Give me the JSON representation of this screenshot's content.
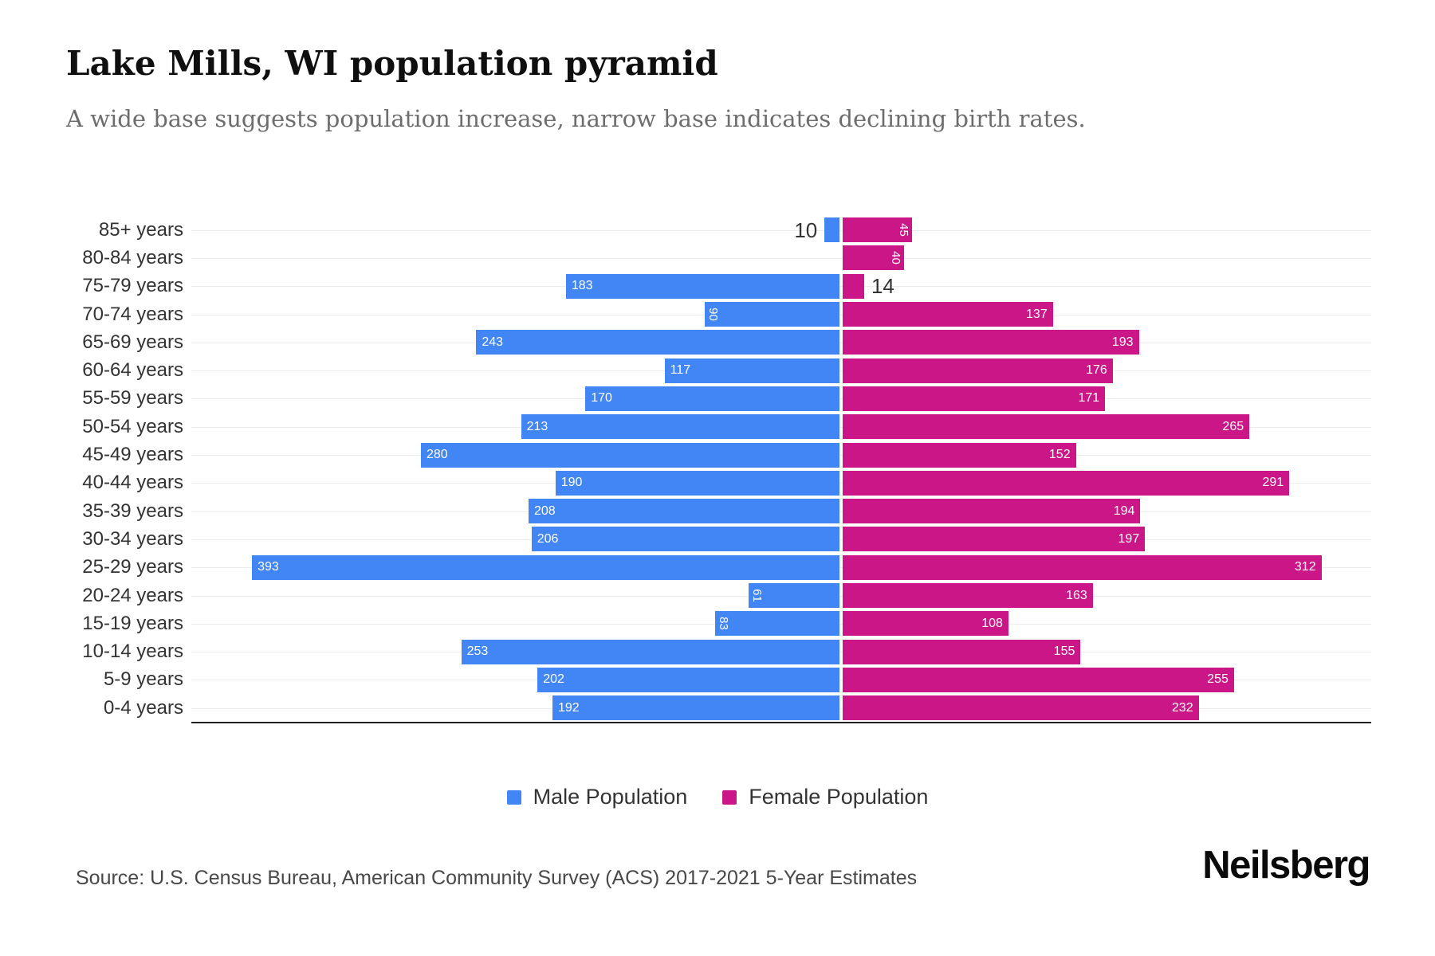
{
  "header": {
    "title": "Lake Mills, WI population pyramid",
    "subtitle": "A wide base suggests population increase, narrow base indicates declining birth rates."
  },
  "chart_data": {
    "type": "bar",
    "subtype": "population-pyramid",
    "orientation": "horizontal",
    "categories": [
      "85+ years",
      "80-84 years",
      "75-79 years",
      "70-74 years",
      "65-69 years",
      "60-64 years",
      "55-59 years",
      "50-54 years",
      "45-49 years",
      "40-44 years",
      "35-39 years",
      "30-34 years",
      "25-29 years",
      "20-24 years",
      "15-19 years",
      "10-14 years",
      "5-9 years",
      "0-4 years"
    ],
    "series": [
      {
        "name": "Male Population",
        "side": "left",
        "color": "#4285f4",
        "values": [
          10,
          0,
          183,
          90,
          243,
          117,
          170,
          213,
          280,
          190,
          208,
          206,
          393,
          61,
          83,
          253,
          202,
          192
        ]
      },
      {
        "name": "Female Population",
        "side": "right",
        "color": "#cb1687",
        "values": [
          45,
          40,
          14,
          137,
          193,
          176,
          171,
          265,
          152,
          291,
          194,
          197,
          312,
          163,
          108,
          155,
          255,
          232
        ]
      }
    ],
    "title": "Lake Mills, WI population pyramid",
    "xlabel": "",
    "ylabel": "",
    "value_labels": "shown at bar ends",
    "grid": "light horizontal line per category row",
    "legend_position": "bottom-center"
  },
  "legend": {
    "male_label": "Male Population",
    "female_label": "Female Population"
  },
  "footer": {
    "source": "Source: U.S. Census Bureau, American Community Survey (ACS) 2017-2021 5-Year Estimates",
    "brand": "Neilsberg"
  },
  "colors": {
    "male": "#4285f4",
    "female": "#cb1687",
    "gridline": "#ededed",
    "axis_line": "#212121"
  }
}
